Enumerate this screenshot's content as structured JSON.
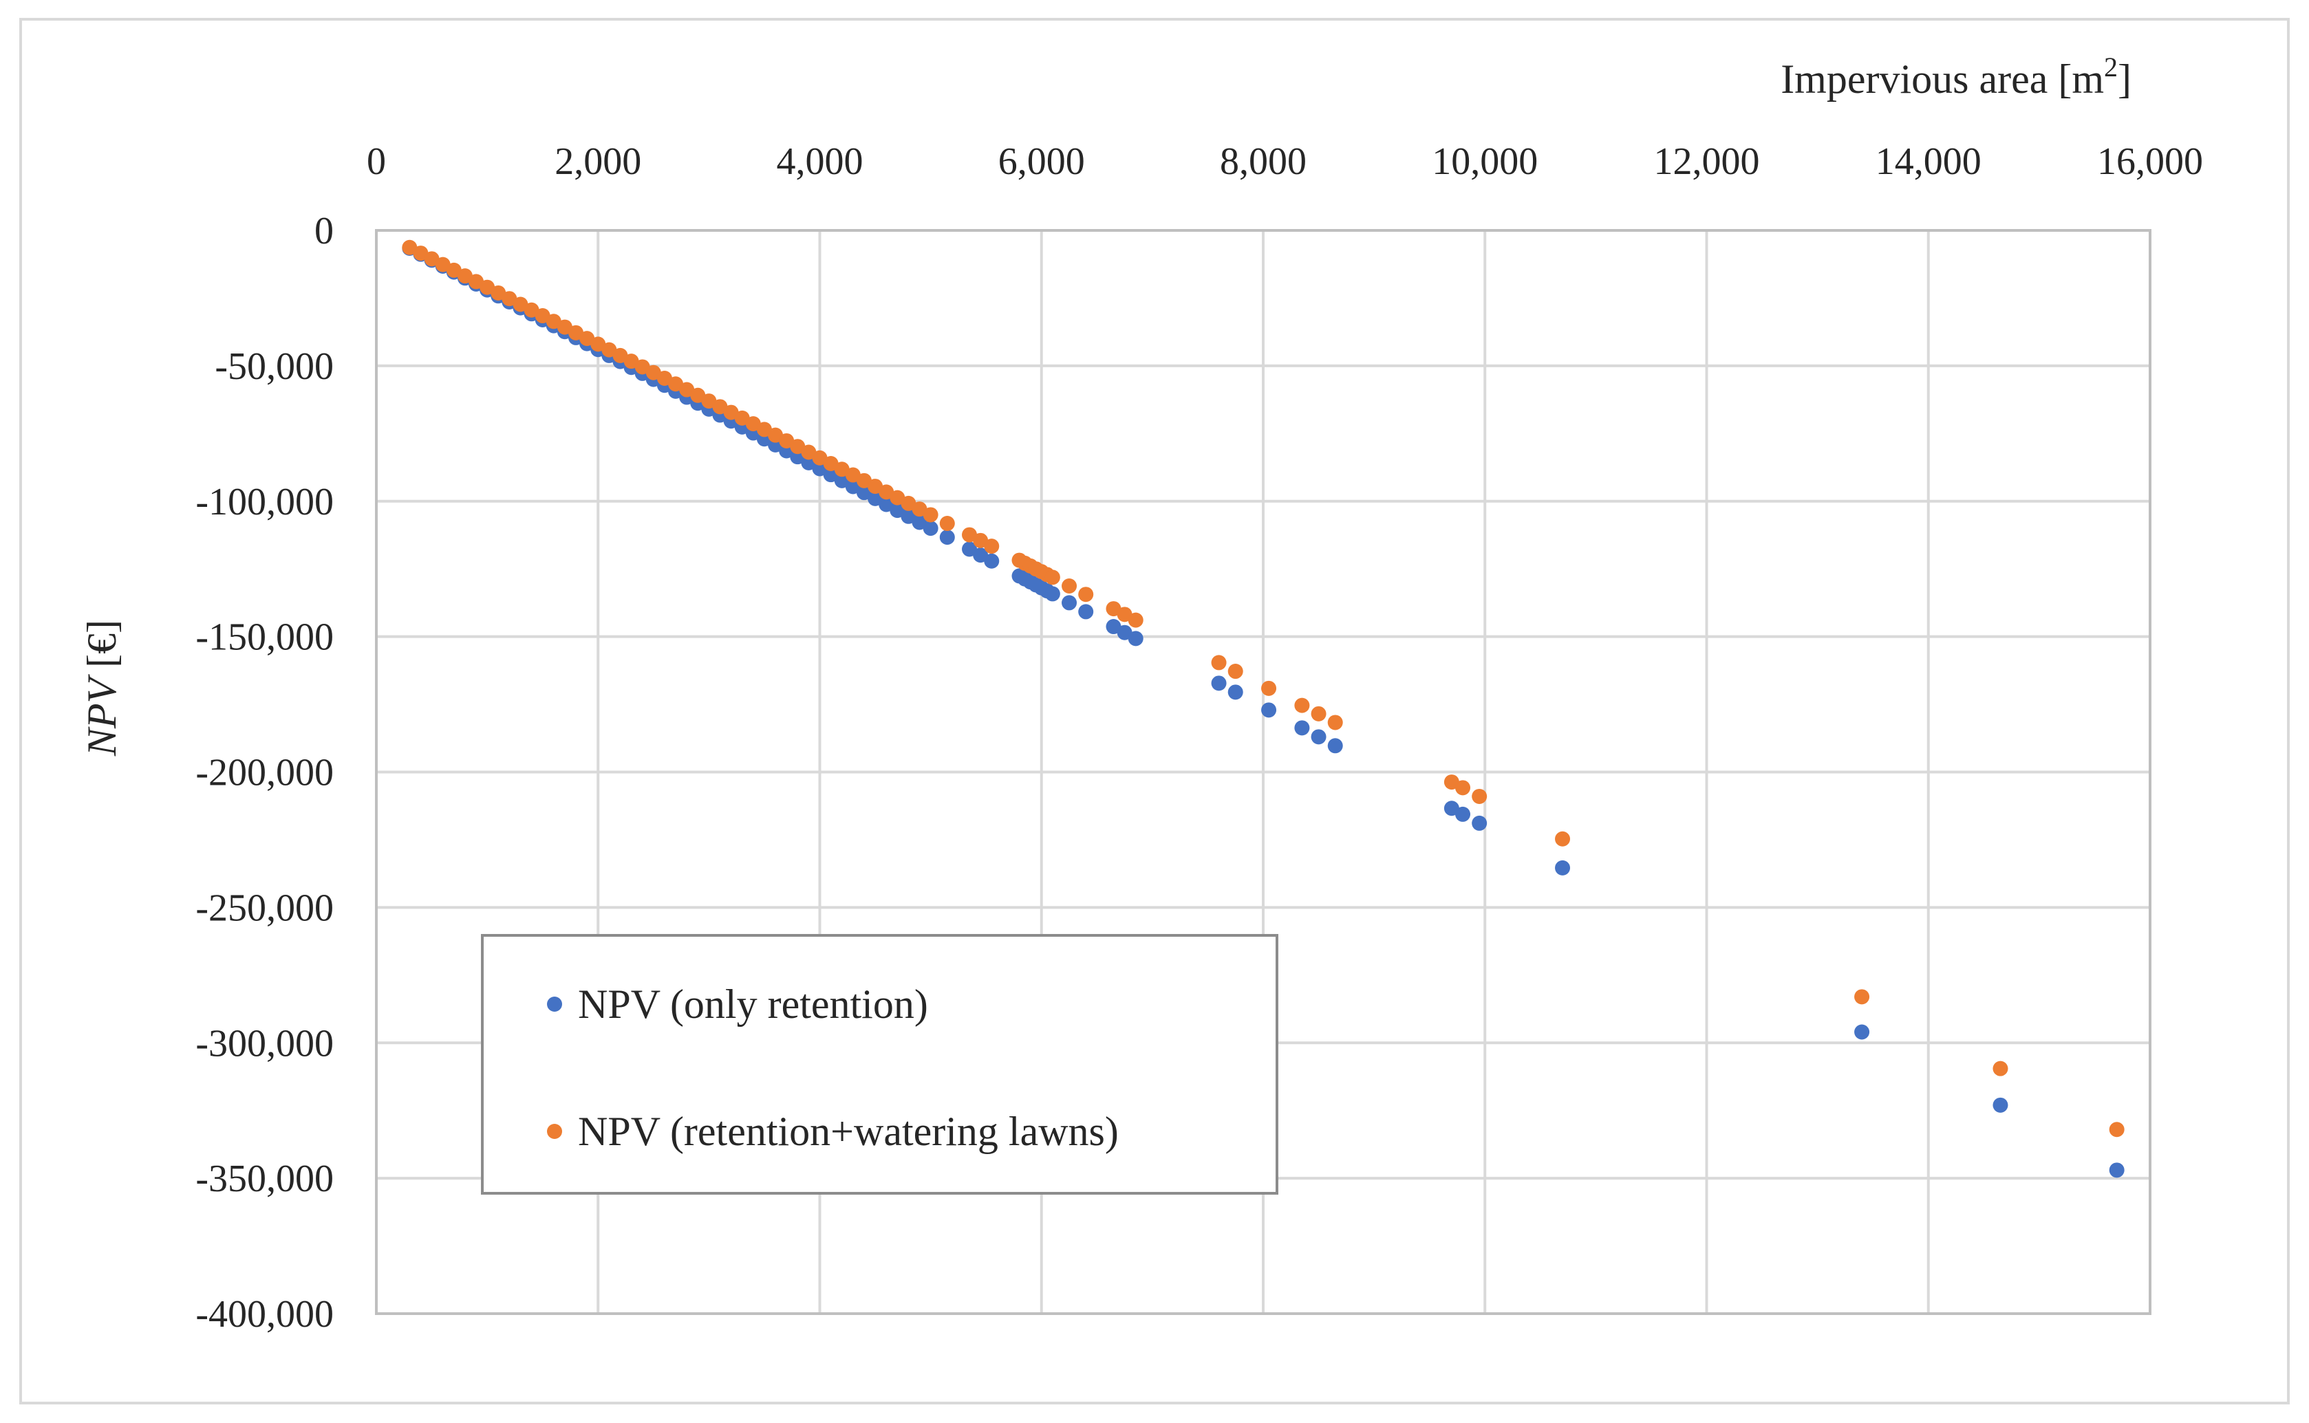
{
  "chart_data": {
    "type": "scatter",
    "title": "",
    "xlabel": "Impervious area [m",
    "xlabel_sup": "2",
    "xlabel_suffix": "]",
    "ylabel_italic": "NPV",
    "ylabel_rest": " [€]",
    "xlim": [
      0,
      16000
    ],
    "ylim": [
      -400000,
      0
    ],
    "x_ticks": [
      0,
      2000,
      4000,
      6000,
      8000,
      10000,
      12000,
      14000,
      16000
    ],
    "y_ticks": [
      0,
      -50000,
      -100000,
      -150000,
      -200000,
      -250000,
      -300000,
      -350000,
      -400000
    ],
    "x_tick_labels": [
      "0",
      "2,000",
      "4,000",
      "6,000",
      "8,000",
      "10,000",
      "12,000",
      "14,000",
      "16,000"
    ],
    "y_tick_labels": [
      "0",
      "-50,000",
      "-100,000",
      "-150,000",
      "-200,000",
      "-250,000",
      "-300,000",
      "-350,000",
      "-400,000"
    ],
    "x_axis_position": "top",
    "grid": true,
    "legend_position": "lower-left",
    "colors": {
      "blue": "#4472C4",
      "orange": "#ED7D31",
      "grid": "#D9D9D9",
      "frame": "#BFBFBF",
      "legend_border": "#8C8C8C"
    },
    "series": [
      {
        "name": "NPV (only retention)",
        "color": "#4472C4",
        "x": [
          300,
          400,
          500,
          600,
          700,
          800,
          900,
          1000,
          1100,
          1200,
          1300,
          1400,
          1500,
          1600,
          1700,
          1800,
          1900,
          2000,
          2100,
          2200,
          2300,
          2400,
          2500,
          2600,
          2700,
          2800,
          2900,
          3000,
          3100,
          3200,
          3300,
          3400,
          3500,
          3600,
          3700,
          3800,
          3900,
          4000,
          4100,
          4200,
          4300,
          4400,
          4500,
          4600,
          4700,
          4800,
          4900,
          5000,
          5150,
          5350,
          5450,
          5550,
          5800,
          5850,
          5900,
          5950,
          6000,
          6050,
          6100,
          6250,
          6400,
          6650,
          6750,
          6850,
          7600,
          7750,
          8050,
          8350,
          8500,
          8650,
          9700,
          9800,
          9950,
          10700,
          13400,
          14650,
          15700
        ],
        "y": [
          -6600,
          -8800,
          -11000,
          -13200,
          -15400,
          -17600,
          -19800,
          -22000,
          -24200,
          -26400,
          -28600,
          -30800,
          -33000,
          -35200,
          -37400,
          -39600,
          -41800,
          -44000,
          -46200,
          -48400,
          -50600,
          -52800,
          -55000,
          -57200,
          -59400,
          -61600,
          -63800,
          -66000,
          -68200,
          -70400,
          -72600,
          -74800,
          -77000,
          -79200,
          -81400,
          -83600,
          -85800,
          -88000,
          -90200,
          -92400,
          -94600,
          -96800,
          -99000,
          -101200,
          -103400,
          -105600,
          -107800,
          -110000,
          -113300,
          -117700,
          -119900,
          -122100,
          -127600,
          -128700,
          -129800,
          -130900,
          -132000,
          -133100,
          -134200,
          -137500,
          -140800,
          -146300,
          -148500,
          -150700,
          -167200,
          -170500,
          -177100,
          -183700,
          -187000,
          -190300,
          -213400,
          -215600,
          -218900,
          -235400,
          -296000,
          -323000,
          -347000
        ]
      },
      {
        "name": "NPV (retention+watering lawns)",
        "color": "#ED7D31",
        "x": [
          300,
          400,
          500,
          600,
          700,
          800,
          900,
          1000,
          1100,
          1200,
          1300,
          1400,
          1500,
          1600,
          1700,
          1800,
          1900,
          2000,
          2100,
          2200,
          2300,
          2400,
          2500,
          2600,
          2700,
          2800,
          2900,
          3000,
          3100,
          3200,
          3300,
          3400,
          3500,
          3600,
          3700,
          3800,
          3900,
          4000,
          4100,
          4200,
          4300,
          4400,
          4500,
          4600,
          4700,
          4800,
          4900,
          5000,
          5150,
          5350,
          5450,
          5550,
          5800,
          5850,
          5900,
          5950,
          6000,
          6050,
          6100,
          6250,
          6400,
          6650,
          6750,
          6850,
          7600,
          7750,
          8050,
          8350,
          8500,
          8650,
          9700,
          9800,
          9950,
          10700,
          13400,
          14650,
          15700
        ],
        "y": [
          -6300,
          -8400,
          -10500,
          -12600,
          -14700,
          -16800,
          -18900,
          -21000,
          -23100,
          -25200,
          -27300,
          -29400,
          -31500,
          -33600,
          -35700,
          -37800,
          -39900,
          -42000,
          -44100,
          -46200,
          -48300,
          -50400,
          -52500,
          -54600,
          -56700,
          -58800,
          -60900,
          -63000,
          -65100,
          -67200,
          -69300,
          -71400,
          -73500,
          -75600,
          -77700,
          -79800,
          -81900,
          -84000,
          -86100,
          -88200,
          -90300,
          -92400,
          -94500,
          -96600,
          -98700,
          -100800,
          -102900,
          -105000,
          -108200,
          -112400,
          -114500,
          -116600,
          -121800,
          -122900,
          -123900,
          -125000,
          -126000,
          -127100,
          -128100,
          -131300,
          -134400,
          -139700,
          -141800,
          -143900,
          -159600,
          -162800,
          -169100,
          -175400,
          -178500,
          -181700,
          -203700,
          -205800,
          -209000,
          -224700,
          -283000,
          -309500,
          -332000
        ]
      }
    ]
  }
}
